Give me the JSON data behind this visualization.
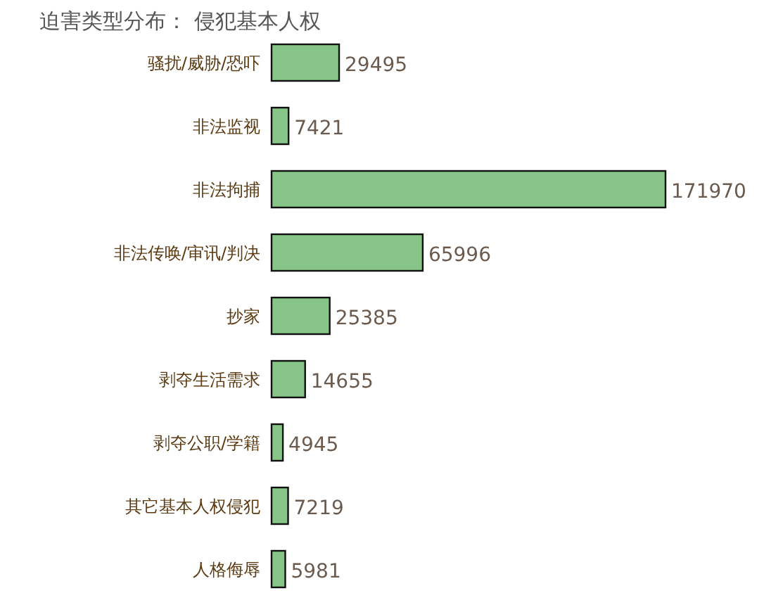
{
  "chart_data": {
    "type": "bar",
    "orientation": "horizontal",
    "title": "迫害类型分布：  侵犯基本人权",
    "categories": [
      "骚扰/威胁/恐吓",
      "非法监视",
      "非法拘捕",
      "非法传唤/审讯/判决",
      "抄家",
      "剥夺生活需求",
      "剥夺公职/学籍",
      "其它基本人权侵犯",
      "人格侮辱"
    ],
    "values": [
      29495,
      7421,
      171970,
      65996,
      25385,
      14655,
      4945,
      7219,
      5981
    ],
    "color": "#86c487",
    "data_labels": true
  }
}
